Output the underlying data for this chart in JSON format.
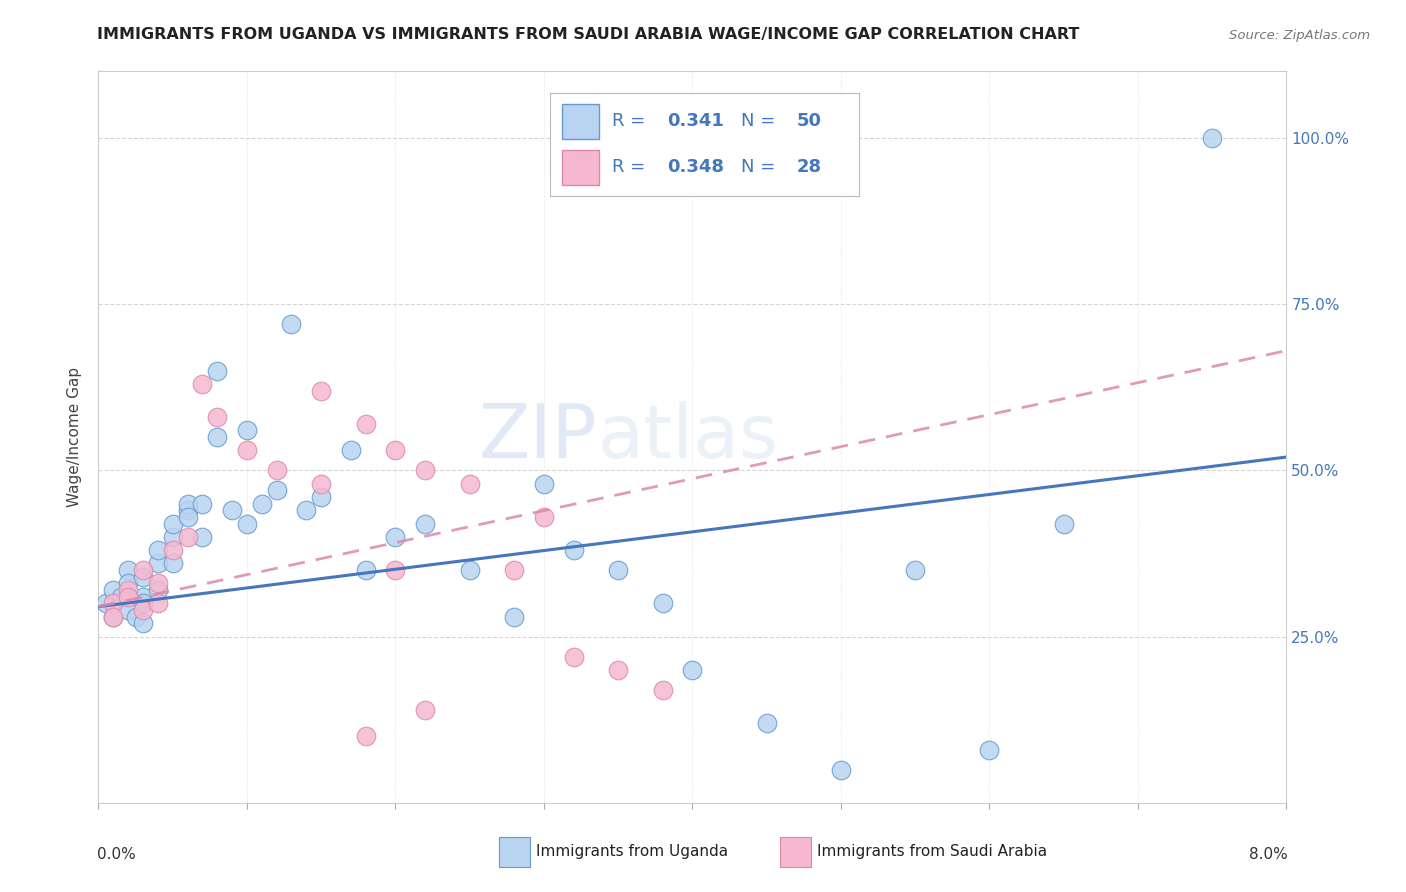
{
  "title": "IMMIGRANTS FROM UGANDA VS IMMIGRANTS FROM SAUDI ARABIA WAGE/INCOME GAP CORRELATION CHART",
  "source": "Source: ZipAtlas.com",
  "ylabel": "Wage/Income Gap",
  "ytick_labels": [
    "25.0%",
    "50.0%",
    "75.0%",
    "100.0%"
  ],
  "ytick_values": [
    0.25,
    0.5,
    0.75,
    1.0
  ],
  "legend_label_1": "Immigrants from Uganda",
  "legend_label_2": "Immigrants from Saudi Arabia",
  "R1": "0.341",
  "N1": "50",
  "R2": "0.348",
  "N2": "28",
  "color_uganda_fill": "#b8d4f0",
  "color_saudi_fill": "#f5b8d0",
  "color_uganda_edge": "#6699cc",
  "color_saudi_edge": "#dd88aa",
  "color_trend_uganda": "#4477bb",
  "color_trend_saudi": "#dd88aa",
  "color_legend_text": "#4477bb",
  "watermark_zip": "#c8d8ee",
  "watermark_atlas": "#c8d8ee",
  "background": "#ffffff",
  "xlim": [
    0.0,
    0.08
  ],
  "ylim": [
    0.0,
    1.1
  ],
  "uganda_x": [
    0.0005,
    0.001,
    0.001,
    0.0015,
    0.002,
    0.002,
    0.002,
    0.0025,
    0.003,
    0.003,
    0.003,
    0.003,
    0.004,
    0.004,
    0.004,
    0.005,
    0.005,
    0.005,
    0.006,
    0.006,
    0.006,
    0.007,
    0.007,
    0.008,
    0.008,
    0.009,
    0.01,
    0.01,
    0.011,
    0.012,
    0.013,
    0.014,
    0.015,
    0.017,
    0.018,
    0.02,
    0.022,
    0.025,
    0.028,
    0.03,
    0.032,
    0.035,
    0.038,
    0.04,
    0.045,
    0.05,
    0.055,
    0.06,
    0.065,
    0.075
  ],
  "uganda_y": [
    0.3,
    0.28,
    0.32,
    0.31,
    0.29,
    0.35,
    0.33,
    0.28,
    0.27,
    0.31,
    0.34,
    0.3,
    0.36,
    0.32,
    0.38,
    0.4,
    0.36,
    0.42,
    0.44,
    0.45,
    0.43,
    0.4,
    0.45,
    0.55,
    0.65,
    0.44,
    0.56,
    0.42,
    0.45,
    0.47,
    0.72,
    0.44,
    0.46,
    0.53,
    0.35,
    0.4,
    0.42,
    0.35,
    0.28,
    0.48,
    0.38,
    0.35,
    0.3,
    0.2,
    0.12,
    0.05,
    0.35,
    0.08,
    0.42,
    1.0
  ],
  "saudi_x": [
    0.001,
    0.001,
    0.002,
    0.002,
    0.003,
    0.003,
    0.004,
    0.004,
    0.005,
    0.006,
    0.007,
    0.008,
    0.01,
    0.012,
    0.015,
    0.015,
    0.018,
    0.02,
    0.022,
    0.025,
    0.028,
    0.03,
    0.032,
    0.035,
    0.038,
    0.02,
    0.018,
    0.022
  ],
  "saudi_y": [
    0.3,
    0.28,
    0.32,
    0.31,
    0.29,
    0.35,
    0.33,
    0.3,
    0.38,
    0.4,
    0.63,
    0.58,
    0.53,
    0.5,
    0.62,
    0.48,
    0.57,
    0.53,
    0.5,
    0.48,
    0.35,
    0.43,
    0.22,
    0.2,
    0.17,
    0.35,
    0.1,
    0.14
  ],
  "ug_trend_x0": 0.0,
  "ug_trend_y0": 0.295,
  "ug_trend_x1": 0.08,
  "ug_trend_y1": 0.52,
  "sa_trend_x0": 0.0,
  "sa_trend_y0": 0.295,
  "sa_trend_x1": 0.08,
  "sa_trend_y1": 0.68
}
